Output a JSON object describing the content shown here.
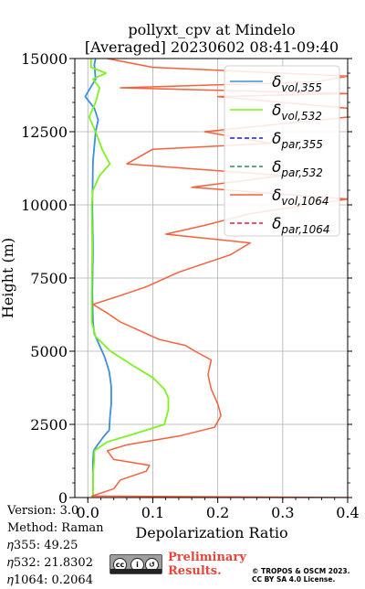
{
  "colors": {
    "vol_355": "#3a8fe0",
    "vol_532": "#7ef31f",
    "par_355": "#1f1fcf",
    "par_532": "#2c8a5a",
    "vol_1064": "#f7603a",
    "par_1064": "#e0202a"
  },
  "chart_data": {
    "type": "line",
    "title": "pollyxt_cpv at Mindelo",
    "subtitle": "[Averaged] 20230602 08:41-09:40",
    "xlabel": "Depolarization Ratio",
    "ylabel": "Height (m)",
    "xlim": [
      -0.02,
      0.4
    ],
    "ylim": [
      0,
      15000
    ],
    "xticks": [
      "0.0",
      "0.1",
      "0.2",
      "0.3",
      "0.4"
    ],
    "yticks": [
      "0",
      "2500",
      "5000",
      "7500",
      "10000",
      "12500",
      "15000"
    ],
    "grid": true,
    "legend_position": "top-right",
    "series": [
      {
        "name": "δvol,355",
        "label_main": "δ",
        "label_sub": "vol,355",
        "style": "solid",
        "color_key": "vol_355",
        "points": [
          [
            0.008,
            0
          ],
          [
            0.008,
            1200
          ],
          [
            0.009,
            1600
          ],
          [
            0.015,
            1800
          ],
          [
            0.025,
            2100
          ],
          [
            0.033,
            2300
          ],
          [
            0.034,
            2700
          ],
          [
            0.036,
            3200
          ],
          [
            0.036,
            3800
          ],
          [
            0.033,
            4300
          ],
          [
            0.026,
            4800
          ],
          [
            0.016,
            5300
          ],
          [
            0.01,
            5600
          ],
          [
            0.008,
            6000
          ],
          [
            0.007,
            7000
          ],
          [
            0.008,
            8500
          ],
          [
            0.007,
            10000
          ],
          [
            0.008,
            11500
          ],
          [
            0.01,
            12000
          ],
          [
            0.012,
            12500
          ],
          [
            0.016,
            12900
          ],
          [
            0.01,
            13300
          ],
          [
            -0.004,
            13700
          ],
          [
            0.012,
            14300
          ],
          [
            0.01,
            14800
          ],
          [
            0.012,
            15000
          ]
        ]
      },
      {
        "name": "δvol,532",
        "label_main": "δ",
        "label_sub": "vol,532",
        "style": "solid",
        "color_key": "vol_532",
        "points": [
          [
            0.008,
            0
          ],
          [
            0.008,
            800
          ],
          [
            0.01,
            1300
          ],
          [
            0.01,
            1600
          ],
          [
            0.03,
            1900
          ],
          [
            0.075,
            2200
          ],
          [
            0.118,
            2500
          ],
          [
            0.124,
            3000
          ],
          [
            0.124,
            3400
          ],
          [
            0.118,
            3700
          ],
          [
            0.1,
            4100
          ],
          [
            0.07,
            4500
          ],
          [
            0.035,
            5000
          ],
          [
            0.012,
            5500
          ],
          [
            0.006,
            6000
          ],
          [
            0.006,
            7000
          ],
          [
            0.007,
            8500
          ],
          [
            0.006,
            10000
          ],
          [
            0.008,
            10500
          ],
          [
            0.018,
            11000
          ],
          [
            0.034,
            11400
          ],
          [
            0.022,
            11900
          ],
          [
            0.012,
            12500
          ],
          [
            0.002,
            13000
          ],
          [
            0.012,
            13500
          ],
          [
            0.018,
            14000
          ],
          [
            0.008,
            14300
          ],
          [
            0.028,
            14500
          ],
          [
            0.005,
            14700
          ],
          [
            0.005,
            15000
          ]
        ]
      },
      {
        "name": "δpar,355",
        "label_main": "δ",
        "label_sub": "par,355",
        "style": "dashed",
        "color_key": "par_355",
        "points": []
      },
      {
        "name": "δpar,532",
        "label_main": "δ",
        "label_sub": "par,532",
        "style": "dashed",
        "color_key": "par_532",
        "points": []
      },
      {
        "name": "δvol,1064",
        "label_main": "δ",
        "label_sub": "vol,1064",
        "style": "solid",
        "color_key": "vol_1064",
        "points": [
          [
            0.4,
            0
          ],
          [
            0.006,
            50
          ],
          [
            0.04,
            300
          ],
          [
            0.05,
            600
          ],
          [
            0.09,
            900
          ],
          [
            0.095,
            1100
          ],
          [
            0.04,
            1300
          ],
          [
            0.03,
            1600
          ],
          [
            0.06,
            1800
          ],
          [
            0.14,
            2100
          ],
          [
            0.195,
            2400
          ],
          [
            0.205,
            2800
          ],
          [
            0.2,
            3200
          ],
          [
            0.19,
            3700
          ],
          [
            0.185,
            4200
          ],
          [
            0.19,
            4700
          ],
          [
            0.165,
            5000
          ],
          [
            0.15,
            5200
          ],
          [
            0.11,
            5400
          ],
          [
            0.08,
            5700
          ],
          [
            0.05,
            6000
          ],
          [
            0.03,
            6300
          ],
          [
            0.008,
            6600
          ],
          [
            0.05,
            6900
          ],
          [
            0.09,
            7200
          ],
          [
            0.14,
            7700
          ],
          [
            0.22,
            8300
          ],
          [
            0.25,
            8700
          ],
          [
            0.12,
            9000
          ],
          [
            0.18,
            9300
          ],
          [
            0.25,
            9700
          ],
          [
            0.4,
            10200
          ],
          [
            0.16,
            10600
          ],
          [
            0.3,
            11000
          ],
          [
            0.06,
            11400
          ],
          [
            0.1,
            11900
          ],
          [
            0.28,
            12100
          ],
          [
            0.18,
            12500
          ],
          [
            0.4,
            13000
          ],
          [
            0.4,
            13300
          ],
          [
            0.2,
            13700
          ],
          [
            0.4,
            13800
          ],
          [
            0.05,
            14000
          ],
          [
            0.35,
            14200
          ],
          [
            0.4,
            14400
          ],
          [
            0.1,
            14700
          ],
          [
            0.03,
            15000
          ]
        ]
      },
      {
        "name": "δpar,1064",
        "label_main": "δ",
        "label_sub": "par,1064",
        "style": "dashed",
        "color_key": "par_1064",
        "points": []
      }
    ]
  },
  "meta": {
    "version": "Version: 3.0",
    "method": "Method: Raman",
    "eta355": "𝜂355:  49.25",
    "eta532": "𝜂532: 21.8302",
    "eta1064": "𝜂1064: 0.2064"
  },
  "footer": {
    "license_badge": "cc by sa",
    "prelim_line1": "Preliminary",
    "prelim_line2": "Results.",
    "credit_line1": "© TROPOS & OSCM 2023.",
    "credit_line2": "CC BY SA 4.0 License."
  }
}
